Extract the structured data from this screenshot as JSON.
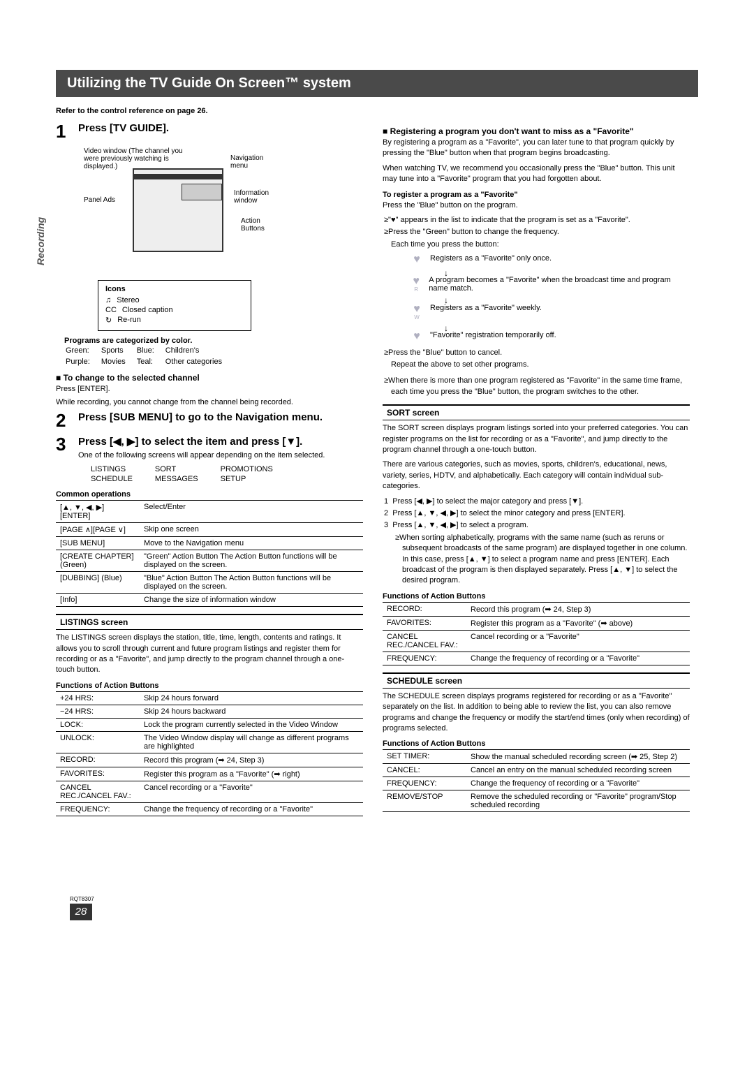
{
  "page": {
    "title": "Utilizing the TV Guide On Screen™ system",
    "ref_note": "Refer to the control reference on page 26.",
    "section_tab": "Recording",
    "rqt": "RQT8307",
    "page_number": "28"
  },
  "step1": {
    "title": "Press [TV GUIDE].",
    "diagram": {
      "video_window": "Video window (The channel you were previously watching is displayed.)",
      "nav_menu": "Navigation menu",
      "panel_ads": "Panel Ads",
      "info_window": "Information window",
      "action_buttons": "Action Buttons"
    },
    "icons": {
      "title": "Icons",
      "stereo": "Stereo",
      "cc": "Closed caption",
      "rerun": "Re-run"
    },
    "color_cat_title": "Programs are categorized by color.",
    "color_cat": [
      [
        "Green:",
        "Sports",
        "Blue:",
        "Children's"
      ],
      [
        "Purple:",
        "Movies",
        "Teal:",
        "Other categories"
      ]
    ],
    "change_channel_title": "To change to the selected channel",
    "change_channel_body": "Press [ENTER].",
    "change_channel_note": "While recording, you cannot change from the channel being recorded."
  },
  "step2": {
    "title": "Press [SUB MENU] to go to the Navigation menu."
  },
  "step3": {
    "title": "Press [◀, ▶] to select the item and press [▼].",
    "body": "One of the following screens will appear depending on the item selected.",
    "screens": [
      [
        "LISTINGS",
        "SORT",
        "PROMOTIONS"
      ],
      [
        "SCHEDULE",
        "MESSAGES",
        "SETUP"
      ]
    ]
  },
  "common_ops": {
    "title": "Common operations",
    "rows": [
      [
        "[▲, ▼, ◀, ▶] [ENTER]",
        "Select/Enter"
      ],
      [
        "[PAGE ∧][PAGE ∨]",
        "Skip one screen"
      ],
      [
        "[SUB MENU]",
        "Move to the Navigation menu"
      ],
      [
        "[CREATE CHAPTER] (Green)",
        "\"Green\" Action Button\nThe Action Button functions will be displayed on the screen."
      ],
      [
        "[DUBBING] (Blue)",
        "\"Blue\" Action Button\nThe Action Button functions will be displayed on the screen."
      ],
      [
        "[Info]",
        "Change the size of information window"
      ]
    ]
  },
  "listings": {
    "header": "LISTINGS screen",
    "body": "The LISTINGS screen displays the station, title, time, length, contents and ratings. It allows you to scroll through current and future program listings and register them for recording or as a \"Favorite\", and jump directly to the program channel through a one-touch button.",
    "table_title": "Functions of Action Buttons",
    "rows": [
      [
        "+24 HRS:",
        "Skip 24 hours forward"
      ],
      [
        "−24 HRS:",
        "Skip 24 hours backward"
      ],
      [
        "LOCK:",
        "Lock the program currently selected in the Video Window"
      ],
      [
        "UNLOCK:",
        "The Video Window display will change as different programs are highlighted"
      ],
      [
        "RECORD:",
        "Record this program (➡ 24, Step 3)"
      ],
      [
        "FAVORITES:",
        "Register this program as a \"Favorite\" (➡ right)"
      ],
      [
        "CANCEL REC./CANCEL FAV.:",
        "Cancel recording or a \"Favorite\""
      ],
      [
        "FREQUENCY:",
        "Change the frequency of recording or a \"Favorite\""
      ]
    ]
  },
  "favorite": {
    "title": "Registering a program you don't want to miss as a \"Favorite\"",
    "body1": "By registering a program as a \"Favorite\", you can later tune to that program quickly by pressing the \"Blue\" button when that program begins broadcasting.",
    "body2": "When watching TV, we recommend you occasionally press the \"Blue\" button. This unit may tune into a \"Favorite\" program that you had forgotten about.",
    "reg_title": "To register a program as a \"Favorite\"",
    "reg_body": "Press the \"Blue\" button on the program.",
    "bullet1": "\"♥\" appears in the list to indicate that the program is set as a \"Favorite\".",
    "bullet2": "Press the \"Green\" button to change the frequency.",
    "each_time": "Each time you press the button:",
    "flow": [
      {
        "sub": "",
        "text": "Registers as a \"Favorite\" only once."
      },
      {
        "sub": "R",
        "text": "A program becomes a \"Favorite\" when the broadcast time and program name match."
      },
      {
        "sub": "W",
        "text": "Registers as a \"Favorite\" weekly."
      },
      {
        "sub": "",
        "text": "\"Favorite\" registration temporarily off."
      }
    ],
    "bullet3": "Press the \"Blue\" button to cancel.",
    "repeat": "Repeat the above to set other programs.",
    "bullet4": "When there is more than one program registered as \"Favorite\" in the same time frame, each time you press the \"Blue\" button, the program switches to the other."
  },
  "sort": {
    "header": "SORT screen",
    "body1": "The SORT screen displays program listings sorted into your preferred categories. You can register programs on the list for recording or as a \"Favorite\", and jump directly to the program channel through a one-touch button.",
    "body2": "There are various categories, such as movies, sports, children's, educational, news, variety, series, HDTV, and alphabetically. Each category will contain individual sub-categories.",
    "steps": [
      "Press [◀, ▶] to select the major category and press [▼].",
      "Press [▲, ▼, ◀, ▶] to select the minor category and press [ENTER].",
      "Press [▲, ▼, ◀, ▶] to select a program."
    ],
    "note": "When sorting alphabetically, programs with the same name (such as reruns or subsequent broadcasts of the same program) are displayed together in one column. In this case, press [▲, ▼] to select a program name and press [ENTER]. Each broadcast of the program is then displayed separately. Press [▲, ▼] to select the desired program.",
    "table_title": "Functions of Action Buttons",
    "rows": [
      [
        "RECORD:",
        "Record this program (➡ 24, Step 3)"
      ],
      [
        "FAVORITES:",
        "Register this program as a \"Favorite\" (➡ above)"
      ],
      [
        "CANCEL REC./CANCEL FAV.:",
        "Cancel recording or a \"Favorite\""
      ],
      [
        "FREQUENCY:",
        "Change the frequency of recording or a \"Favorite\""
      ]
    ]
  },
  "schedule": {
    "header": "SCHEDULE screen",
    "body": "The SCHEDULE screen displays programs registered for recording or as a \"Favorite\" separately on the list. In addition to being able to review the list, you can also remove programs and change the frequency or modify the start/end times (only when recording) of programs selected.",
    "table_title": "Functions of Action Buttons",
    "rows": [
      [
        "SET TIMER:",
        "Show the manual scheduled recording screen (➡ 25, Step 2)"
      ],
      [
        "CANCEL:",
        "Cancel an entry on the manual scheduled recording screen"
      ],
      [
        "FREQUENCY:",
        "Change the frequency of recording or a \"Favorite\""
      ],
      [
        "REMOVE/STOP",
        "Remove the scheduled recording or \"Favorite\" program/Stop scheduled recording"
      ]
    ]
  }
}
